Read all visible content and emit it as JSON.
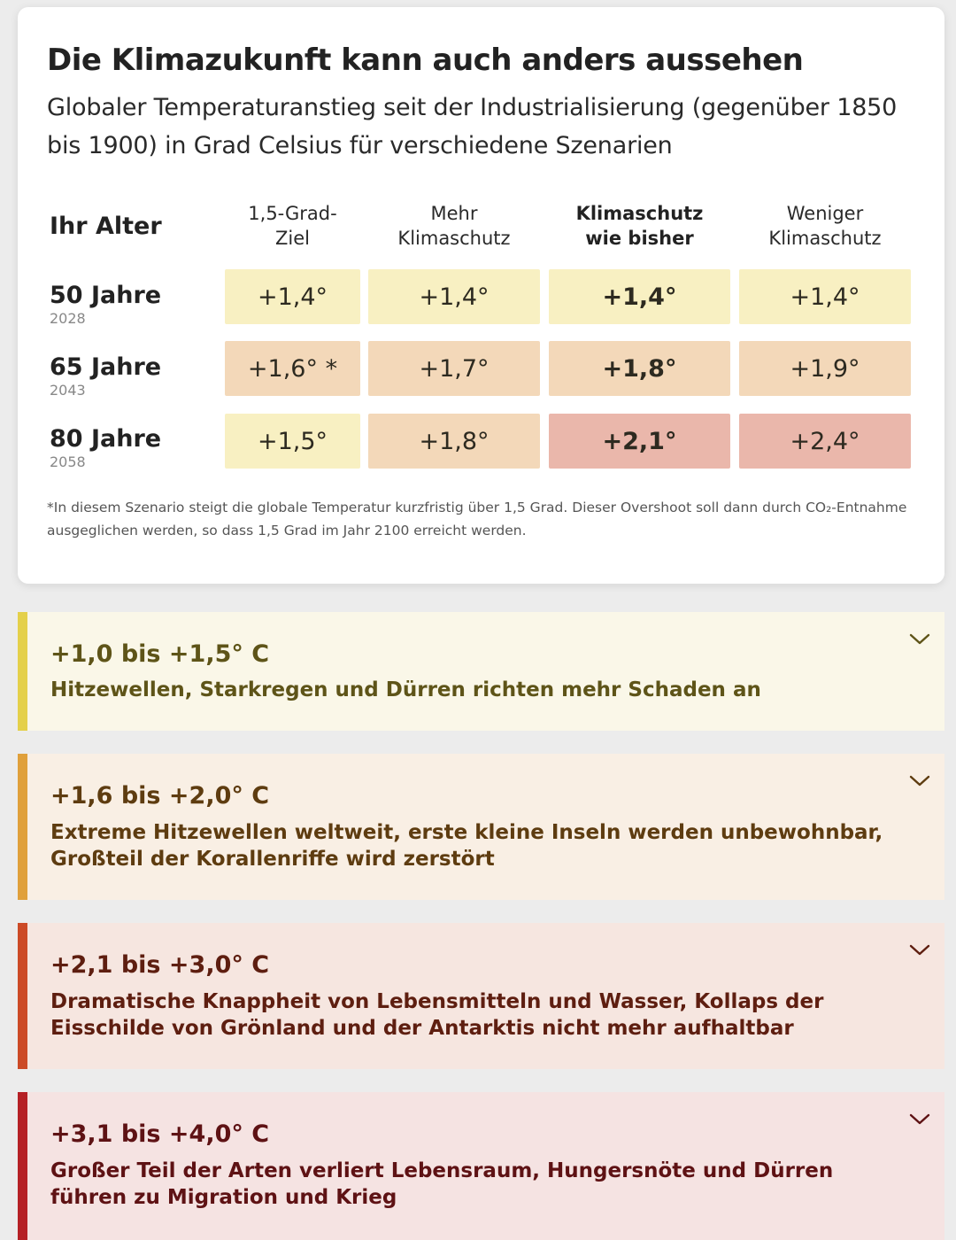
{
  "card": {
    "title": "Die Klimazukunft kann auch anders aussehen",
    "subtitle": "Globaler Temperaturanstieg seit der Industrialisierung (gegenüber 1850 bis 1900) in Grad Celsius für verschiedene Szenarien",
    "age_header": "Ihr Alter",
    "columns": [
      {
        "line1": "1,5-Grad-",
        "line2": "Ziel"
      },
      {
        "line1": "Mehr",
        "line2": "Klimaschutz"
      },
      {
        "line1": "Klimaschutz",
        "line2": "wie bisher"
      },
      {
        "line1": "Weniger",
        "line2": "Klimaschutz"
      }
    ],
    "rows": [
      {
        "age": "50 Jahre",
        "year": "2028",
        "values": [
          "+1,4°",
          "+1,4°",
          "+1,4°",
          "+1,4°"
        ]
      },
      {
        "age": "65 Jahre",
        "year": "2043",
        "values": [
          "+1,6° *",
          "+1,7°",
          "+1,8°",
          "+1,9°"
        ]
      },
      {
        "age": "80 Jahre",
        "year": "2058",
        "values": [
          "+1,5°",
          "+1,8°",
          "+2,1°",
          "+2,4°"
        ]
      }
    ],
    "footnote": "*In diesem Szenario steigt die globale Temperatur kurzfristig über 1,5 Grad. Dieser Overshoot soll dann durch CO₂-Entnahme ausgeglichen werden, so dass 1,5 Grad im Jahr 2100 erreicht werden."
  },
  "colors": {
    "yellow_cell": "#f8f0c2",
    "orange_cell": "#f3d8b9",
    "red_cell": "#eab7ab"
  },
  "accordions": [
    {
      "range": "+1,0 bis +1,5° C",
      "desc": "Hitzewellen, Starkregen und Dürren richten mehr Schaden an",
      "icon": "chevron-down-icon",
      "accent": "#e4d04a",
      "bg": "#faf7e8",
      "text": "#5e5418"
    },
    {
      "range": "+1,6 bis +2,0° C",
      "desc": "Extreme Hitzewellen weltweit, erste kleine Inseln werden unbewohnbar, Großteil der Korallenriffe wird zerstört",
      "icon": "chevron-down-icon",
      "accent": "#e0a03b",
      "bg": "#f9efe4",
      "text": "#5e3c10"
    },
    {
      "range": "+2,1 bis +3,0° C",
      "desc": "Dramatische Knappheit von Lebensmitteln und Wasser, Kollaps der Eisschilde von Grönland und der Antarktis nicht mehr aufhaltbar",
      "icon": "chevron-down-icon",
      "accent": "#cc4a26",
      "bg": "#f6e6e0",
      "text": "#5e1e10"
    },
    {
      "range": "+3,1 bis +4,0° C",
      "desc": "Großer Teil der Arten verliert Lebensraum, Hungersnöte und Dürren führen zu Migration und Krieg",
      "icon": "chevron-down-icon",
      "accent": "#b52025",
      "bg": "#f5e3e2",
      "text": "#5e1214"
    }
  ]
}
